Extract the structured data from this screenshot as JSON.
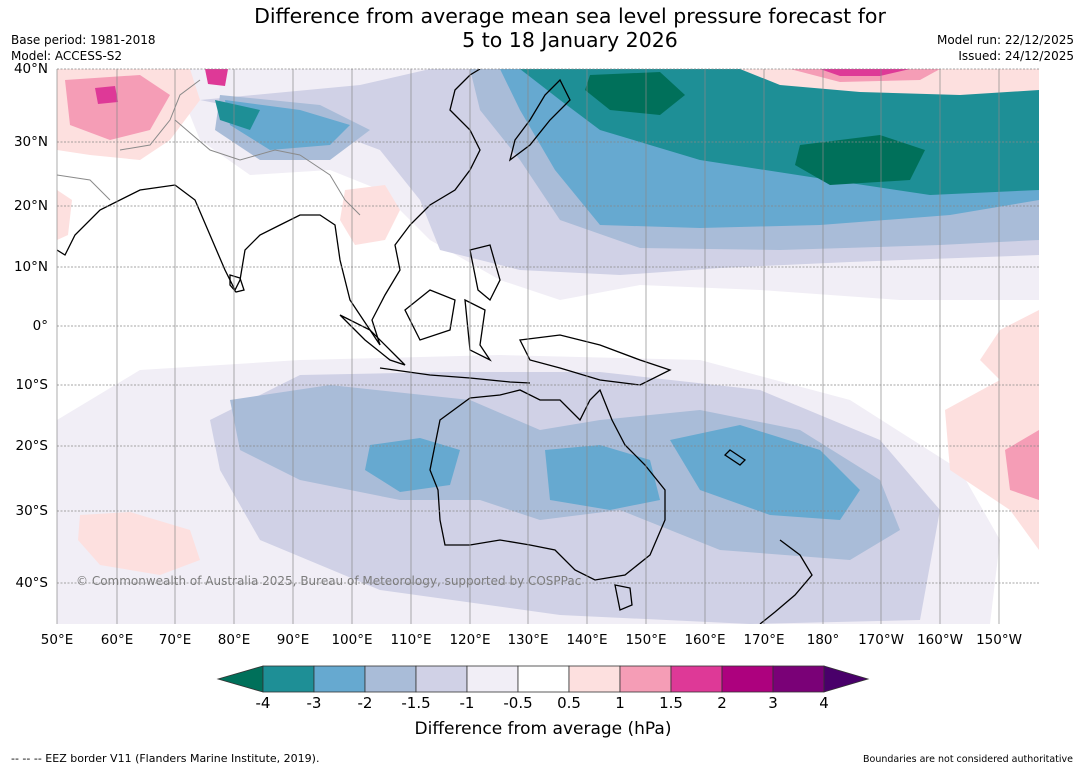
{
  "header": {
    "title_line1": "Difference from average mean sea level pressure forecast for",
    "title_line2": "5 to 18 January 2026",
    "base_period": "Base period: 1981-2018",
    "model": "Model: ACCESS-S2",
    "model_run": "Model run: 22/12/2025",
    "issued": "Issued: 24/12/2025"
  },
  "map": {
    "latitude_labels": [
      "40°N",
      "30°N",
      "20°N",
      "10°N",
      "0°",
      "10°S",
      "20°S",
      "30°S",
      "40°S"
    ],
    "longitude_labels": [
      "50°E",
      "60°E",
      "70°E",
      "80°E",
      "90°E",
      "100°E",
      "110°E",
      "120°E",
      "130°E",
      "140°E",
      "150°E",
      "160°E",
      "170°E",
      "180°",
      "170°W",
      "160°W",
      "150°W"
    ],
    "copyright": "© Commonwealth of Australia 2025, Bureau of Meteorology, supported by COSPPac",
    "colors": {
      "neg4": "#00705a",
      "neg3": "#1e8f96",
      "neg2": "#66a9d0",
      "neg15": "#a9bcd8",
      "neg1": "#d0d1e6",
      "neg05": "#f1eef6",
      "zero": "#ffffff",
      "pos05": "#fde0df",
      "pos1": "#f59db6",
      "pos15": "#de3997",
      "pos2": "#ad017e",
      "pos3": "#7a0177",
      "pos4": "#49006a"
    }
  },
  "colorbar": {
    "ticks": [
      "-4",
      "-3",
      "-2",
      "-1.5",
      "-1",
      "-0.5",
      "0.5",
      "1",
      "1.5",
      "2",
      "3",
      "4"
    ],
    "label": "Difference from average (hPa)"
  },
  "footer": {
    "eez_note": "--  --  -- EEZ border V11 (Flanders Marine Institute, 2019).",
    "boundary_note": "Boundaries are not considered authoritative"
  }
}
